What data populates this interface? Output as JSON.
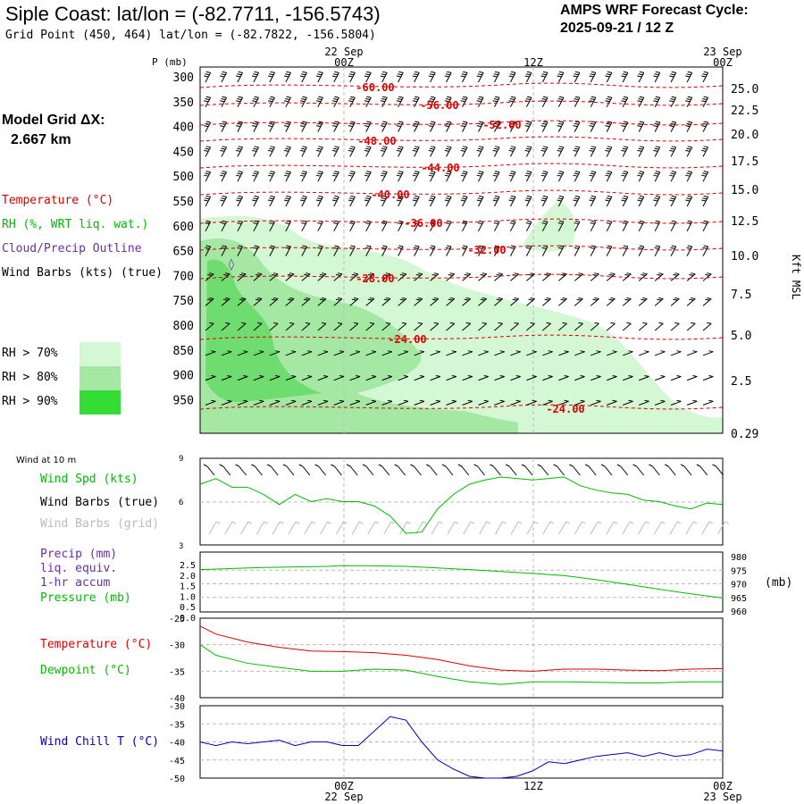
{
  "header": {
    "title": "Siple Coast:  lat/lon = (-82.7711, -156.5743)",
    "grid_point": "Grid Point (450, 464) lat/lon = (-82.7822, -156.5804)",
    "cycle_label": "AMPS WRF Forecast Cycle:",
    "cycle_value": "2025-09-21 / 12  Z"
  },
  "model_grid": {
    "label": "Model Grid ΔX:",
    "value": "2.667 km"
  },
  "legend": {
    "temperature": "Temperature (°C)",
    "rh": "RH (%, WRT liq. wat.)",
    "cloud": "Cloud/Precip Outline",
    "barbs": "Wind Barbs (kts) (true)",
    "rh_levels": [
      {
        "label": "RH > 70%",
        "color": "#d4f7d4"
      },
      {
        "label": "RH > 80%",
        "color": "#a4e8a4"
      },
      {
        "label": "RH > 90%",
        "color": "#33dd33"
      }
    ]
  },
  "colors": {
    "temp": "#dd0000",
    "green": "#00bb00",
    "purple": "#6a2fa0",
    "blue": "#0000bb",
    "gray": "#bbbbbb"
  },
  "time_axis": {
    "top_labels": [
      {
        "top": "22 Sep",
        "bot": "00Z"
      },
      {
        "top": "",
        "bot": "12Z"
      },
      {
        "top": "23 Sep",
        "bot": "00Z"
      }
    ],
    "bottom_labels": [
      {
        "top": "00Z",
        "bot": "22 Sep"
      },
      {
        "top": "12Z",
        "bot": ""
      },
      {
        "top": "00Z",
        "bot": "23 Sep"
      }
    ]
  },
  "chart_data": [
    {
      "type": "heatmap",
      "title": "Vertical cross-section (time-height)",
      "ylabel": "P (mb)",
      "y2label": "Kft MSL",
      "pressure_ticks": [
        300,
        350,
        400,
        450,
        500,
        550,
        600,
        650,
        700,
        750,
        800,
        850,
        900,
        950
      ],
      "kft_ticks": [
        "25.0",
        "22.5",
        "20.0",
        "17.5",
        "15.0",
        "12.5",
        "10.0",
        "7.5",
        "5.0",
        "2.5",
        "0.29"
      ],
      "temperature_contour_labels": [
        "-60.00",
        "-56.00",
        "-52.00",
        "-48.00",
        "-44.00",
        "-40.00",
        "-36.00",
        "-32.00",
        "-28.00",
        "-24.00",
        "-24.00"
      ]
    },
    {
      "type": "line",
      "title": "Wind at 10 m",
      "series_labels": [
        "Wind Spd (kts)",
        "Wind Barbs (true)",
        "Wind Barbs (grid)"
      ],
      "yticks": [
        "9",
        "6",
        "3"
      ],
      "ylim": [
        3,
        9
      ],
      "hours": [
        -9,
        -8,
        -7,
        -6,
        -5,
        -4,
        -3,
        -2,
        -1,
        0,
        1,
        2,
        3,
        4,
        5,
        6,
        7,
        8,
        9,
        10,
        11,
        12,
        13,
        14,
        15,
        16,
        17,
        18,
        19,
        20,
        21,
        22,
        23,
        24
      ],
      "wind_speed_kts": [
        7.2,
        7.6,
        7.0,
        7.0,
        6.5,
        5.8,
        6.5,
        6.0,
        6.2,
        6.0,
        6.0,
        5.7,
        5.0,
        3.8,
        3.9,
        5.5,
        6.5,
        7.2,
        7.5,
        7.7,
        7.6,
        7.5,
        7.6,
        7.7,
        7.1,
        6.8,
        6.6,
        6.5,
        6.1,
        6.0,
        5.7,
        5.5,
        5.9,
        5.8
      ]
    },
    {
      "type": "line",
      "title": "Precip / Pressure",
      "series_labels": [
        "Precip (mm)",
        "liq. equiv.",
        "1-hr accum",
        "Pressure (mb)"
      ],
      "precip_ticks": [
        "2.5",
        "2.0",
        "1.5",
        "1.0",
        "0.5",
        "0.0"
      ],
      "pressure_ticks": [
        "980",
        "975",
        "970",
        "965",
        "960"
      ],
      "pressure_unit": "(mb)",
      "ylim": [
        960,
        980
      ],
      "hours": [
        -9,
        -7,
        -5,
        -3,
        -1,
        0,
        2,
        4,
        6,
        8,
        10,
        12,
        14,
        16,
        18,
        20,
        22,
        24
      ],
      "pressure_mb": [
        975.2,
        975.6,
        976.0,
        976.2,
        976.4,
        976.7,
        976.6,
        976.4,
        975.8,
        975.2,
        974.5,
        973.8,
        973.0,
        971.5,
        969.8,
        968.0,
        966.3,
        964.8
      ],
      "precip_mm": []
    },
    {
      "type": "line",
      "title": "Temperature / Dewpoint",
      "series_labels": [
        "Temperature (°C)",
        "Dewpoint (°C)"
      ],
      "yticks": [
        "-25",
        "-30",
        "-35",
        "-40"
      ],
      "ylim": [
        -40,
        -25
      ],
      "hours": [
        -9,
        -8,
        -6,
        -4,
        -2,
        0,
        2,
        4,
        6,
        8,
        10,
        12,
        14,
        16,
        18,
        20,
        22,
        24
      ],
      "temperature_c": [
        -26.5,
        -28.0,
        -29.5,
        -30.5,
        -31.2,
        -31.3,
        -31.5,
        -32.0,
        -32.8,
        -34.0,
        -34.8,
        -35.0,
        -34.6,
        -34.6,
        -34.8,
        -34.9,
        -34.6,
        -34.5
      ],
      "dewpoint_c": [
        -30.0,
        -32.0,
        -33.5,
        -34.3,
        -35.0,
        -35.0,
        -34.6,
        -34.8,
        -36.0,
        -37.0,
        -37.5,
        -37.0,
        -37.0,
        -37.1,
        -37.2,
        -37.2,
        -37.0,
        -37.0
      ]
    },
    {
      "type": "line",
      "title": "Wind Chill",
      "series_labels": [
        "Wind Chill T (°C)"
      ],
      "yticks": [
        "-30",
        "-35",
        "-40",
        "-45",
        "-50"
      ],
      "ylim": [
        -50,
        -30
      ],
      "hours": [
        -9,
        -8,
        -7,
        -6,
        -5,
        -4,
        -3,
        -2,
        -1,
        0,
        1,
        2,
        3,
        4,
        5,
        6,
        7,
        8,
        9,
        10,
        11,
        12,
        13,
        14,
        15,
        16,
        17,
        18,
        19,
        20,
        21,
        22,
        23,
        24
      ],
      "wind_chill_c": [
        -40.0,
        -41.0,
        -40.0,
        -40.5,
        -40.0,
        -39.5,
        -41.0,
        -40.0,
        -40.0,
        -41.0,
        -41.0,
        -37.0,
        -33.0,
        -34.0,
        -40.0,
        -45.0,
        -47.5,
        -49.5,
        -50.0,
        -50.0,
        -49.5,
        -48.0,
        -45.5,
        -46.0,
        -45.0,
        -44.0,
        -43.5,
        -43.0,
        -44.0,
        -43.0,
        -44.0,
        -43.5,
        -42.0,
        -42.5
      ]
    }
  ]
}
